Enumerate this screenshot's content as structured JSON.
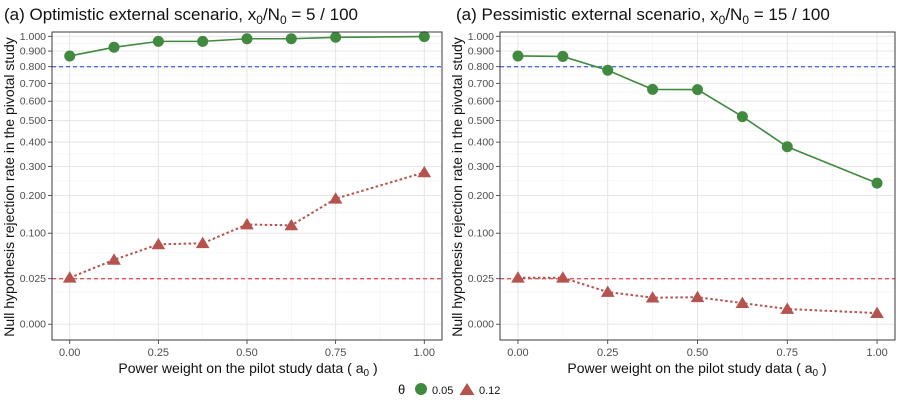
{
  "chart_data": [
    {
      "type": "line",
      "title_prefix": "(a) Optimistic external scenario, x",
      "title_sub1": "0",
      "title_mid": "/N",
      "title_sub2": "0",
      "title_suffix": " =  5 / 100",
      "xlabel_main": "Power weight on the pilot study data ( a",
      "xlabel_sub": "0",
      "xlabel_end": " )",
      "ylabel": "Null hypothesis rejection rate in the pivotal study",
      "x": [
        0,
        0.125,
        0.25,
        0.375,
        0.5,
        0.625,
        0.75,
        1.0
      ],
      "xticks": [
        0,
        0.25,
        0.5,
        0.75,
        1.0
      ],
      "xtick_labels": [
        "0.00",
        "0.25",
        "0.50",
        "0.75",
        "1.00"
      ],
      "yticks": [
        0.0,
        0.025,
        0.1,
        0.2,
        0.3,
        0.4,
        0.5,
        0.6,
        0.7,
        0.8,
        0.9,
        1.0
      ],
      "ytick_labels": [
        "0.000",
        "0.025",
        "0.100",
        "0.200",
        "0.300",
        "0.400",
        "0.500",
        "0.600",
        "0.700",
        "0.800",
        "0.900",
        "1.000"
      ],
      "y_scale": "sqrt",
      "ylim": [
        -0.003,
        1.03
      ],
      "xlim": [
        -0.05,
        1.05
      ],
      "hlines": [
        {
          "y": 0.8,
          "color": "#4b6fe0"
        },
        {
          "y": 0.025,
          "color": "#e05555"
        }
      ],
      "series": [
        {
          "name": "0.05",
          "marker": "circle",
          "color": "#3f8a3f",
          "dash": "solid",
          "values": [
            0.868,
            0.925,
            0.965,
            0.965,
            0.983,
            0.983,
            0.993,
            0.998
          ]
        },
        {
          "name": "0.12",
          "marker": "triangle",
          "color": "#b5534e",
          "dash": "dotted",
          "values": [
            0.026,
            0.05,
            0.077,
            0.079,
            0.12,
            0.118,
            0.19,
            0.278
          ]
        }
      ]
    },
    {
      "type": "line",
      "title_prefix": "(a) Pessimistic external scenario, x",
      "title_sub1": "0",
      "title_mid": "/N",
      "title_sub2": "0",
      "title_suffix": " =  15 / 100",
      "xlabel_main": "Power weight on the pilot study data ( a",
      "xlabel_sub": "0",
      "xlabel_end": " )",
      "ylabel": "Null hypothesis rejection rate in the pivotal study",
      "x": [
        0,
        0.125,
        0.25,
        0.375,
        0.5,
        0.625,
        0.75,
        1.0
      ],
      "xticks": [
        0,
        0.25,
        0.5,
        0.75,
        1.0
      ],
      "xtick_labels": [
        "0.00",
        "0.25",
        "0.50",
        "0.75",
        "1.00"
      ],
      "yticks": [
        0.0,
        0.025,
        0.1,
        0.2,
        0.3,
        0.4,
        0.5,
        0.6,
        0.7,
        0.8,
        0.9,
        1.0
      ],
      "ytick_labels": [
        "0.000",
        "0.025",
        "0.100",
        "0.200",
        "0.300",
        "0.400",
        "0.500",
        "0.600",
        "0.700",
        "0.800",
        "0.900",
        "1.000"
      ],
      "y_scale": "sqrt",
      "ylim": [
        -0.003,
        1.03
      ],
      "xlim": [
        -0.05,
        1.05
      ],
      "hlines": [
        {
          "y": 0.8,
          "color": "#4b6fe0"
        },
        {
          "y": 0.025,
          "color": "#e05555"
        }
      ],
      "series": [
        {
          "name": "0.05",
          "marker": "circle",
          "color": "#3f8a3f",
          "dash": "solid",
          "values": [
            0.868,
            0.865,
            0.778,
            0.665,
            0.664,
            0.52,
            0.38,
            0.24
          ]
        },
        {
          "name": "0.12",
          "marker": "triangle",
          "color": "#b5534e",
          "dash": "dotted",
          "values": [
            0.026,
            0.026,
            0.0125,
            0.0085,
            0.0088,
            0.0054,
            0.0028,
            0.0015
          ]
        }
      ]
    }
  ],
  "legend": {
    "title": "θ",
    "items": [
      {
        "label": "0.05",
        "marker": "circle",
        "color": "#3f8a3f"
      },
      {
        "label": "0.12",
        "marker": "triangle",
        "color": "#b5534e"
      }
    ]
  }
}
